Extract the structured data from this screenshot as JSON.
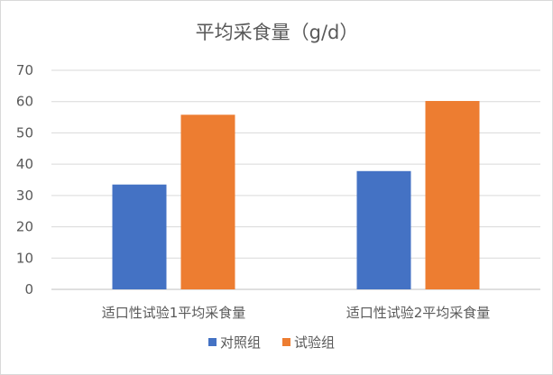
{
  "chart_data": {
    "type": "bar",
    "title": "平均采食量（g/d）",
    "categories": [
      "适口性试验1平均采食量",
      "适口性试验2平均采食量"
    ],
    "series": [
      {
        "name": "对照组",
        "values": [
          33.5,
          37.8
        ],
        "color": "#4472c4"
      },
      {
        "name": "试验组",
        "values": [
          55.8,
          60.2
        ],
        "color": "#ed7d31"
      }
    ],
    "ylim": [
      0,
      70
    ],
    "yticks": [
      0,
      10,
      20,
      30,
      40,
      50,
      60,
      70
    ],
    "grid": true,
    "legend": "bottom"
  }
}
